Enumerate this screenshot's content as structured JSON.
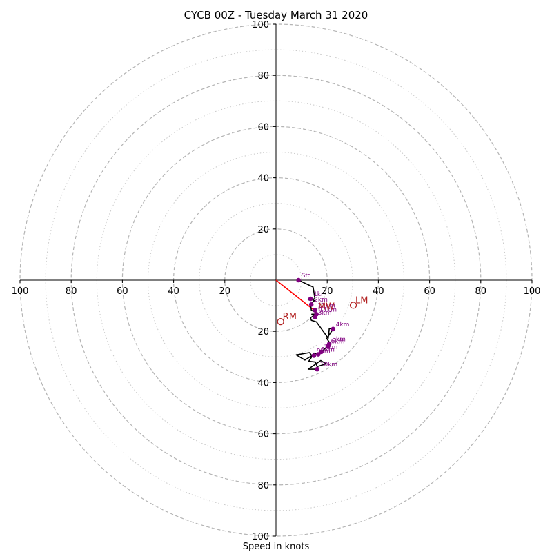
{
  "chart_data": {
    "type": "scatter",
    "subtype": "hodograph",
    "title": "CYCB 00Z - Tuesday March 31 2020",
    "xlabel": "Speed in knots",
    "ylabel": "",
    "xlim": [
      -100,
      100
    ],
    "ylim": [
      -100,
      100
    ],
    "grid": true,
    "rings_major": [
      20,
      40,
      60,
      80,
      100
    ],
    "rings_minor": [
      10,
      30,
      50,
      70,
      90
    ],
    "x_ticks": [
      "100",
      "80",
      "60",
      "40",
      "20",
      "20",
      "40",
      "60",
      "80",
      "100"
    ],
    "x_tick_values": [
      -100,
      -80,
      -60,
      -40,
      -20,
      20,
      40,
      60,
      80,
      100
    ],
    "y_ticks": [
      "100",
      "80",
      "60",
      "40",
      "20",
      "20",
      "40",
      "60",
      "80",
      "100"
    ],
    "y_tick_values": [
      100,
      80,
      60,
      40,
      20,
      -20,
      -40,
      -60,
      -80,
      -100
    ],
    "profile": {
      "color": "#000000",
      "u": [
        8.8,
        14.5,
        15.2,
        12.6,
        14.5,
        15,
        13.5,
        13.8,
        15.3,
        16,
        15,
        14,
        15.7,
        13.5,
        13.8,
        15.8,
        20.4,
        20.8,
        22.3,
        19.8,
        21.3,
        20.3,
        17.7,
        16.5,
        14.8,
        14,
        13.1,
        7.9,
        11.3,
        14.5,
        12.8,
        15.4,
        16.1,
        19.6,
        17.5,
        12.6,
        16.1
      ],
      "v": [
        0,
        -2.7,
        -7.3,
        -7.7,
        -7.7,
        -8,
        -9.5,
        -11.7,
        -12.5,
        -13,
        -13.7,
        -13.3,
        -13.3,
        -14.7,
        -15.7,
        -16.3,
        -22.7,
        -18.9,
        -19.1,
        -22.8,
        -24.9,
        -25.7,
        -28,
        -29,
        -28.5,
        -29.5,
        -28.3,
        -29.2,
        -31.2,
        -29.2,
        -31.7,
        -32,
        -33.8,
        -32.7,
        -31.4,
        -34.8,
        -34.8
      ]
    },
    "height_points": {
      "color": "#800080",
      "labels": [
        "Sfc",
        "1km",
        "2km",
        "3km",
        "4km",
        "5km",
        "6km",
        "7km",
        "8km",
        "9km",
        "10km",
        "11km",
        "12km"
      ],
      "u": [
        8.8,
        13.5,
        13.8,
        15.3,
        22.3,
        20.8,
        20.4,
        17.7,
        16.5,
        14.8,
        16.1,
        15.8,
        15.2
      ],
      "v": [
        0,
        -7.3,
        -9.5,
        -14.5,
        -19.1,
        -24.9,
        -25.7,
        -28.0,
        -29.0,
        -29.5,
        -34.8,
        -13.3,
        -11.7
      ]
    },
    "storm_motion": {
      "color": "#b22222",
      "points": [
        {
          "name": "RM",
          "u": 1.8,
          "v": -16.2
        },
        {
          "name": "LM",
          "u": 30.2,
          "v": -9.8
        },
        {
          "name": "MW",
          "u": 15.6,
          "v": -12.3
        }
      ]
    },
    "shear_vector": {
      "color": "#ff0000",
      "u": [
        0,
        15.6
      ],
      "v": [
        0,
        -12.3
      ]
    }
  }
}
